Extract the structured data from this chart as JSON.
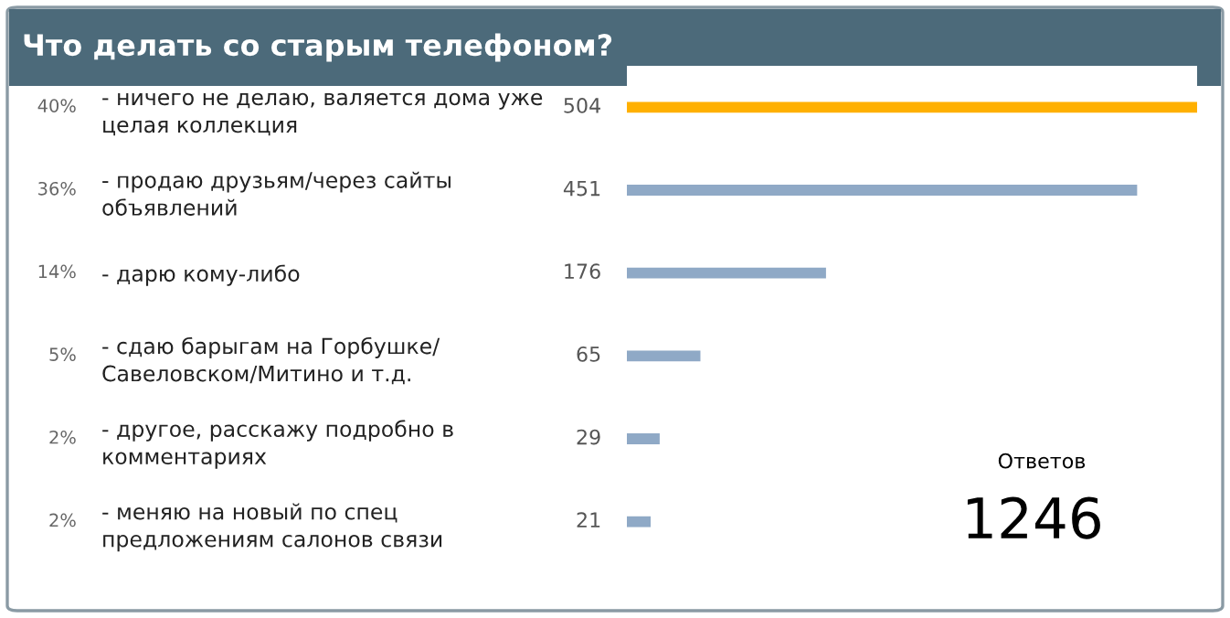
{
  "chart_data": {
    "type": "bar",
    "orientation": "horizontal",
    "title": "Что делать со старым телефоном?",
    "categories": [
      "- ничего не делаю, валяется дома уже\nцелая коллекция",
      "- продаю друзьям/через сайты\nобъявлений",
      "- дарю кому-либо",
      "- сдаю барыгам на Горбушке/\nСавеловском/Митино и т.д.",
      "- другое, расскажу подробно в\nкомментариях",
      "- меняю на новый по спец\nпредложениям салонов связи"
    ],
    "values": [
      504,
      451,
      176,
      65,
      29,
      21
    ],
    "colors": [
      "#ffb000",
      "#8fa9c6",
      "#8fa9c6",
      "#8fa9c6",
      "#8fa9c6",
      "#8fa9c6"
    ],
    "data_labels": true,
    "annotations": [
      "40%",
      "36%",
      "14%",
      "5%",
      "2%",
      "2%",
      "Ответов",
      "1246"
    ],
    "grid": false,
    "legend": false
  }
}
